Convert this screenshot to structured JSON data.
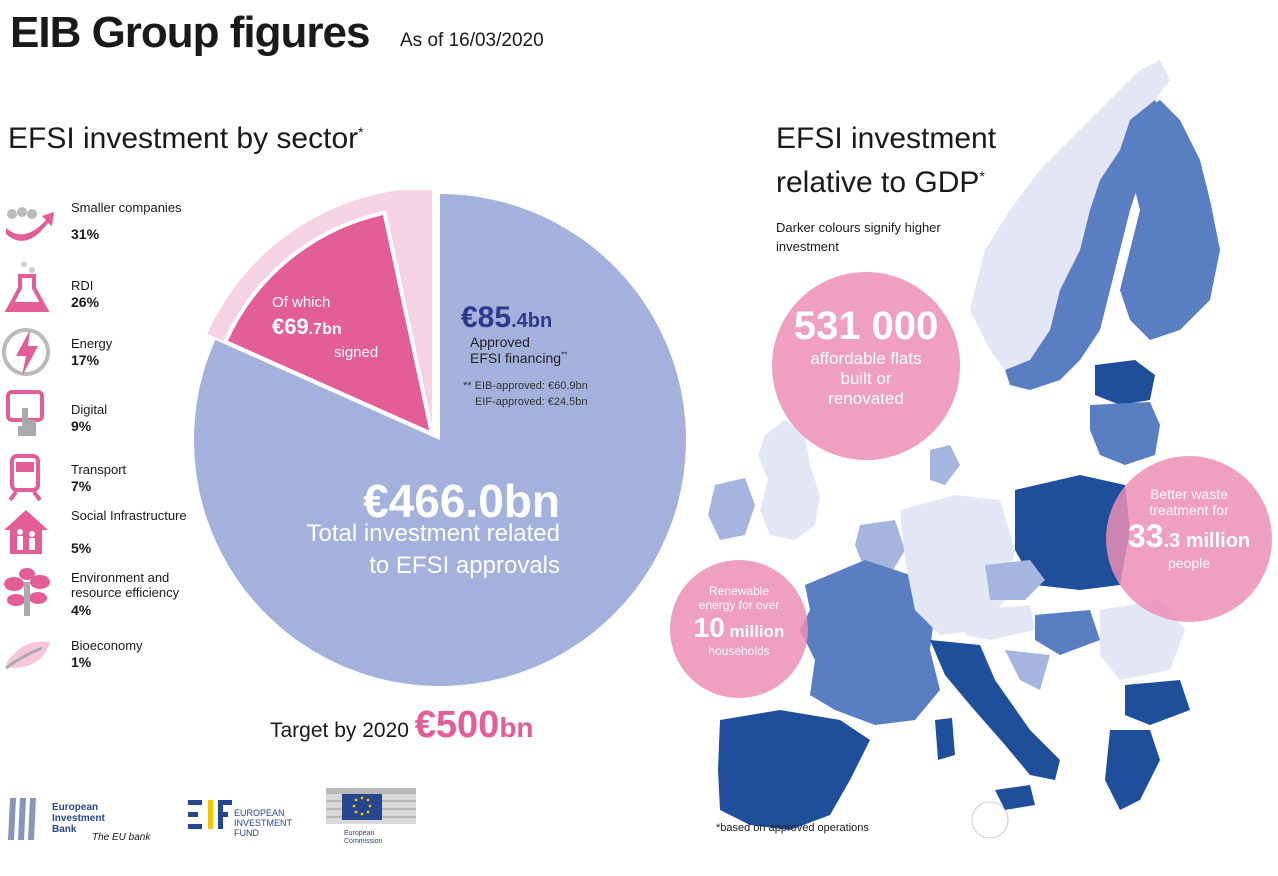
{
  "header": {
    "title": "EIB Group figures",
    "as_of": "As of 16/03/2020"
  },
  "sector_panel": {
    "title": "EFSI investment by sector",
    "title_mark": "*",
    "items": [
      {
        "label": "Smaller companies",
        "value": "31%",
        "icon": "growth-arrow-icon"
      },
      {
        "label": "RDI",
        "value": "26%",
        "icon": "flask-icon"
      },
      {
        "label": "Energy",
        "value": "17%",
        "icon": "lightning-icon"
      },
      {
        "label": "Digital",
        "value": "9%",
        "icon": "touchscreen-icon"
      },
      {
        "label": "Transport",
        "value": "7%",
        "icon": "train-icon"
      },
      {
        "label": "Social Infrastructure",
        "value": "5%",
        "icon": "house-family-icon"
      },
      {
        "label": "Environment and resource efficiency",
        "value": "4%",
        "icon": "tree-icon"
      },
      {
        "label": "Bioeconomy",
        "value": "1%",
        "icon": "leaf-icon"
      }
    ]
  },
  "chart_data": {
    "type": "pie",
    "unit": "€bn",
    "slices": [
      {
        "value": 466.0,
        "label": "Total investment related to EFSI approvals",
        "color": "#a3b1dc"
      },
      {
        "value": 85.4,
        "label": "Approved EFSI financing",
        "color": "#f6d3e2"
      },
      {
        "value": 69.7,
        "label": "Of which signed",
        "color": "#e35d96"
      }
    ]
  },
  "pie_labels": {
    "total_value": "€466.0bn",
    "total_text_1": "Total investment related",
    "total_text_2": "to EFSI approvals",
    "approved_value_big": "€85",
    "approved_value_small": ".4bn",
    "approved_text_1": "Approved",
    "approved_text_2": "EFSI financing",
    "approved_mark": "**",
    "eib_approved": "** EIB-approved: €60.9bn",
    "eif_approved": "EIF-approved: €24.5bn",
    "signed_of_which": "Of which",
    "signed_value_big": "€69",
    "signed_value_small": ".7bn",
    "signed_text": "signed"
  },
  "target": {
    "text": "Target by 2020 ",
    "value_big": "€500",
    "value_small": "bn"
  },
  "gdp_panel": {
    "title_1": "EFSI investment",
    "title_2": "relative to GDP",
    "title_mark": "*",
    "note": "Darker colours signify higher investment",
    "footnote": "*based on approved operations"
  },
  "bubbles": {
    "flats": {
      "value": "531 000",
      "text_1": "affordable flats",
      "text_2": "built or",
      "text_3": "renovated"
    },
    "waste": {
      "text_1": "Better waste",
      "text_2": "treatment for",
      "value_big": "33",
      "value_small": ".3 million",
      "text_3": "people"
    },
    "energy": {
      "text_1": "Renewable",
      "text_2": "energy for over",
      "value_big": "10",
      "value_small": " million",
      "text_3": "households"
    }
  },
  "logos": {
    "eib": {
      "line1": "European",
      "line2": "Investment",
      "line3": "Bank",
      "tagline": "The EU bank"
    },
    "eif": {
      "line1": "EUROPEAN",
      "line2": "INVESTMENT",
      "line3": "FUND"
    },
    "ec": {
      "line1": "European",
      "line2": "Commission"
    }
  },
  "colors": {
    "pink_bubble": "#ec8eb4",
    "pie_main": "#a3b1dc",
    "pie_approved": "#f6d3e2",
    "pie_signed": "#e35d96",
    "map_dark": "#1f4e9a",
    "map_mid": "#5a7ec2",
    "map_light": "#a6b5e0",
    "map_pale": "#e3e6f4"
  }
}
